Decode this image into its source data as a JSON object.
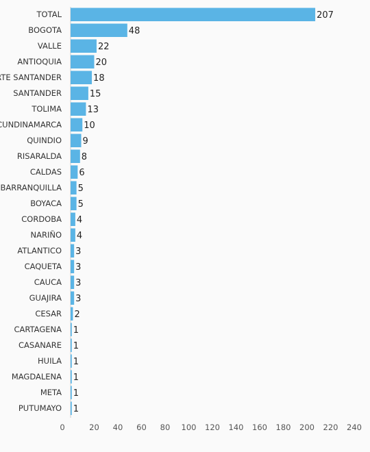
{
  "chart_data": {
    "type": "bar",
    "orientation": "horizontal",
    "categories": [
      "TOTAL",
      "BOGOTA",
      "VALLE",
      "ANTIOQUIA",
      "NORTE SANTANDER",
      "SANTANDER",
      "TOLIMA",
      "CUNDINAMARCA",
      "QUINDIO",
      "RISARALDA",
      "CALDAS",
      "BARRANQUILLA",
      "BOYACA",
      "CORDOBA",
      "NARIÑO",
      "ATLANTICO",
      "CAQUETA",
      "CAUCA",
      "GUAJIRA",
      "CESAR",
      "CARTAGENA",
      "CASANARE",
      "HUILA",
      "MAGDALENA",
      "META",
      "PUTUMAYO"
    ],
    "values": [
      207,
      48,
      22,
      20,
      18,
      15,
      13,
      10,
      9,
      8,
      6,
      5,
      5,
      4,
      4,
      3,
      3,
      3,
      3,
      2,
      1,
      1,
      1,
      1,
      1,
      1
    ],
    "xlim": [
      0,
      240
    ],
    "xticks": [
      0,
      20,
      40,
      60,
      80,
      100,
      120,
      140,
      160,
      180,
      200,
      220,
      240
    ],
    "title": "",
    "xlabel": "",
    "ylabel": "",
    "grid": false,
    "legend": "none",
    "bar_color": "#5ab4e5"
  }
}
